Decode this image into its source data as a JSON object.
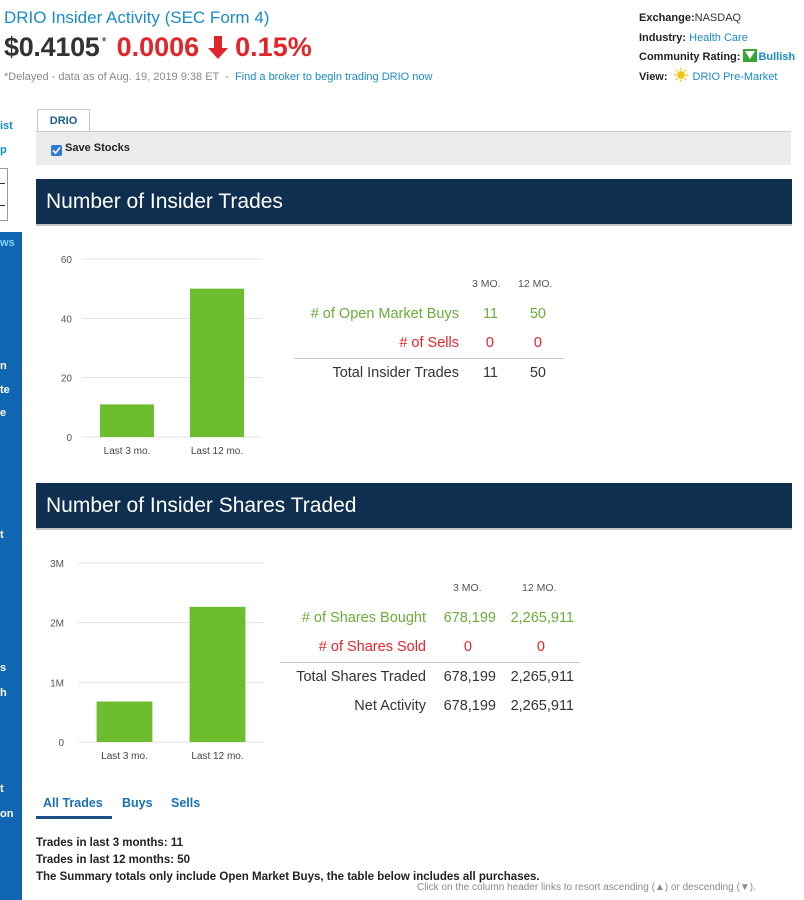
{
  "header": {
    "title": "DRIO Insider Activity (SEC Form 4)",
    "price": "$0.4105",
    "price_footnote": "*",
    "change": "0.0006",
    "change_pct": "0.15%",
    "delayed_text": "*Delayed - data as of Aug. 19, 2019 9:38 ET",
    "separator": "-",
    "broker_link": "Find a broker to begin trading DRIO now"
  },
  "meta": {
    "exchange_label": "Exchange:",
    "exchange_value": "NASDAQ",
    "industry_label": "Industry:",
    "industry_value": "Health Care",
    "rating_label": "Community Rating:",
    "rating_value": "Bullish",
    "view_label": "View:",
    "view_value": "DRIO Pre-Market"
  },
  "sidebar": {
    "top_labels": [
      "ist",
      "p"
    ],
    "blue_top_label": "ws",
    "blue_labels": [
      "n",
      "te",
      "e",
      "t",
      "s",
      "h",
      "t",
      "on"
    ]
  },
  "tabs": {
    "active": "DRIO",
    "save_label": "Save Stocks"
  },
  "section1": {
    "title": "Number of Insider Trades",
    "col_3mo": "3 MO.",
    "col_12mo": "12 MO.",
    "rows": [
      {
        "label": "# of Open Market Buys",
        "v3": "11",
        "v12": "50",
        "color": "green"
      },
      {
        "label": "# of Sells",
        "v3": "0",
        "v12": "0",
        "color": "red"
      },
      {
        "label": "Total Insider Trades",
        "v3": "11",
        "v12": "50",
        "color": "dark"
      }
    ]
  },
  "section2": {
    "title": "Number of Insider Shares Traded",
    "col_3mo": "3 MO.",
    "col_12mo": "12 MO.",
    "rows": [
      {
        "label": "# of Shares Bought",
        "v3": "678,199",
        "v12": "2,265,911",
        "color": "green"
      },
      {
        "label": "# of Shares Sold",
        "v3": "0",
        "v12": "0",
        "color": "red"
      },
      {
        "label": "Total Shares Traded",
        "v3": "678,199",
        "v12": "2,265,911",
        "color": "dark"
      },
      {
        "label": "Net Activity",
        "v3": "678,199",
        "v12": "2,265,911",
        "color": "dark"
      }
    ]
  },
  "chart_data": [
    {
      "type": "bar",
      "categories": [
        "Last 3 mo.",
        "Last 12 mo."
      ],
      "values": [
        11,
        50
      ],
      "ylim": [
        0,
        60
      ],
      "yticks": [
        0,
        20,
        40,
        60
      ],
      "ytick_labels": [
        "0",
        "20",
        "40",
        "60"
      ],
      "color": "#6cbe2e",
      "grid": true
    },
    {
      "type": "bar",
      "categories": [
        "Last 3 mo.",
        "Last 12 mo."
      ],
      "values": [
        678199,
        2265911
      ],
      "ylim": [
        0,
        3000000
      ],
      "yticks": [
        0,
        1000000,
        2000000,
        3000000
      ],
      "ytick_labels": [
        "0",
        "1M",
        "2M",
        "3M"
      ],
      "color": "#6cbe2e",
      "grid": true
    }
  ],
  "trade_tabs": [
    "All Trades",
    "Buys",
    "Sells"
  ],
  "summary": {
    "line1": "Trades in last 3 months: 11",
    "line2": "Trades in last 12 months: 50",
    "line3": "The Summary totals only include Open Market Buys, the table below includes all purchases."
  },
  "sort_note": "Click on the column header links to resort ascending (▲) or descending (▼)."
}
